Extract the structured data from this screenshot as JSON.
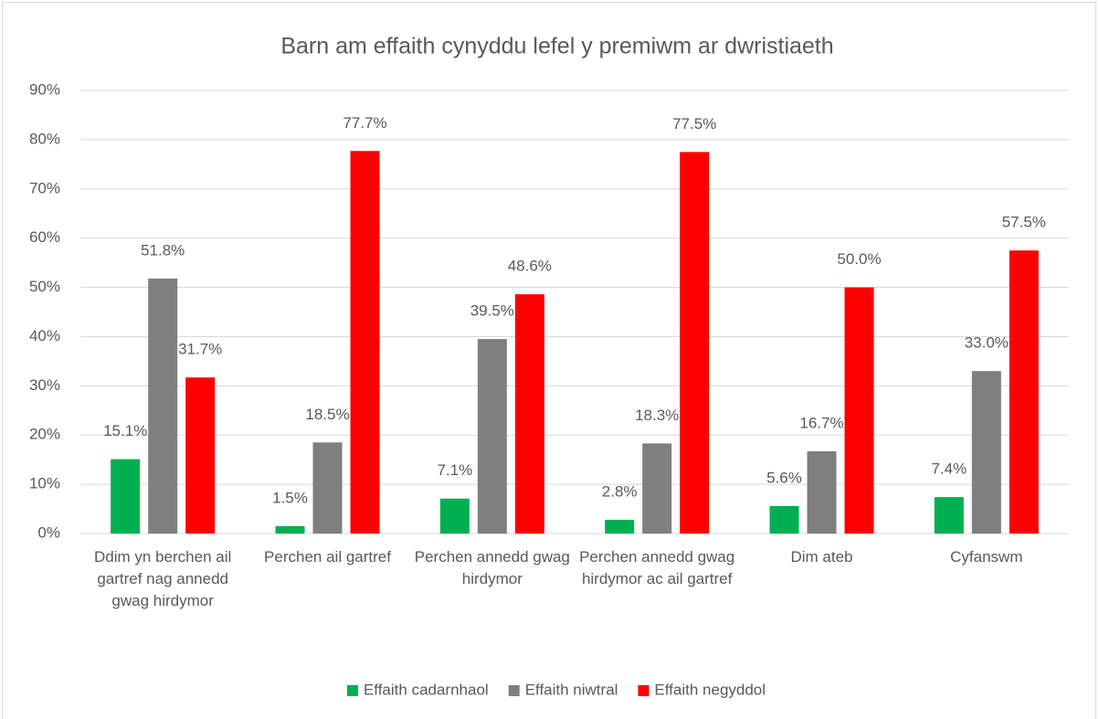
{
  "chart_data": {
    "type": "bar",
    "title": "Barn am effaith cynyddu lefel y premiwm ar dwristiaeth",
    "categories": [
      "Ddim yn berchen ail gartref nag annedd gwag hirdymor",
      "Perchen ail gartref",
      "Perchen annedd gwag hirdymor",
      "Perchen annedd gwag hirdymor ac ail gartref",
      "Dim ateb",
      "Cyfanswm"
    ],
    "series": [
      {
        "name": "Effaith cadarnhaol",
        "color": "#00b050",
        "values": [
          15.1,
          1.5,
          7.1,
          2.8,
          5.6,
          7.4
        ],
        "value_labels": [
          "15.1%",
          "1.5%",
          "7.1%",
          "2.8%",
          "5.6%",
          "7.4%"
        ]
      },
      {
        "name": "Effaith niwtral",
        "color": "#7f7f7f",
        "values": [
          51.8,
          18.5,
          39.5,
          18.3,
          16.7,
          33.0
        ],
        "value_labels": [
          "51.8%",
          "18.5%",
          "39.5%",
          "18.3%",
          "16.7%",
          "33.0%"
        ]
      },
      {
        "name": "Effaith negyddol",
        "color": "#ff0000",
        "values": [
          31.7,
          77.7,
          48.6,
          77.5,
          50.0,
          57.5
        ],
        "value_labels": [
          "31.7%",
          "77.7%",
          "48.6%",
          "77.5%",
          "50.0%",
          "57.5%"
        ]
      }
    ],
    "ylim": [
      0,
      90
    ],
    "yticks": [
      {
        "value": 0,
        "label": "0%"
      },
      {
        "value": 10,
        "label": "10%"
      },
      {
        "value": 20,
        "label": "20%"
      },
      {
        "value": 30,
        "label": "30%"
      },
      {
        "value": 40,
        "label": "40%"
      },
      {
        "value": 50,
        "label": "50%"
      },
      {
        "value": 60,
        "label": "60%"
      },
      {
        "value": 70,
        "label": "70%"
      },
      {
        "value": 80,
        "label": "80%"
      },
      {
        "value": 90,
        "label": "90%"
      }
    ],
    "grid": true,
    "legend": "bottom"
  }
}
